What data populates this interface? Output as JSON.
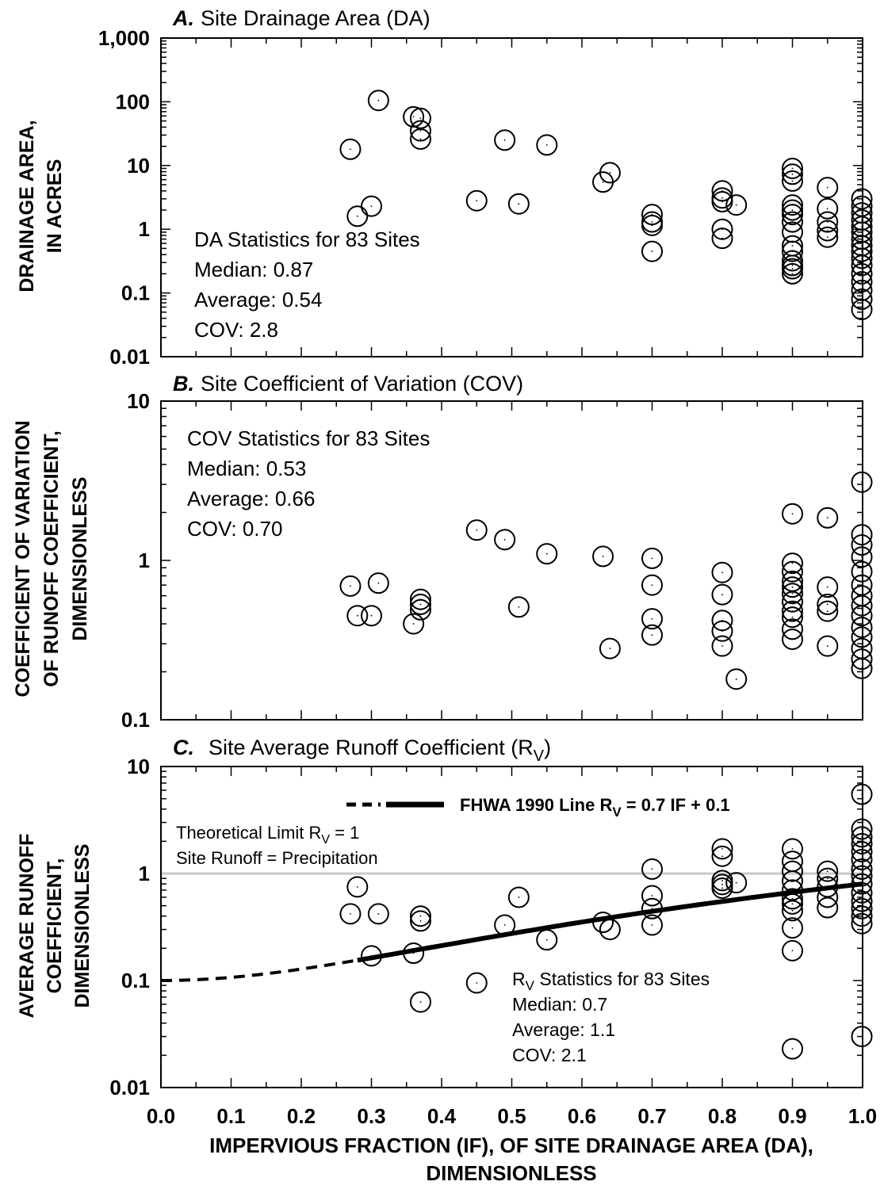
{
  "chart_data": [
    {
      "id": "A",
      "type": "scatter",
      "title_letter": "A.",
      "title": "Site Drainage Area (DA)",
      "ylabel_lines": [
        "DRAINAGE AREA,",
        "IN ACRES"
      ],
      "yscale": "log",
      "ylim": [
        0.01,
        1000
      ],
      "yticks": [
        {
          "v": 0.01,
          "label": "0.01"
        },
        {
          "v": 0.1,
          "label": "0.1"
        },
        {
          "v": 1,
          "label": "1"
        },
        {
          "v": 10,
          "label": "10"
        },
        {
          "v": 100,
          "label": "100"
        },
        {
          "v": 1000,
          "label": "1,000"
        }
      ],
      "xlim": [
        0,
        1
      ],
      "stats": [
        "DA Statistics for 83 Sites",
        "Median: 0.87",
        "Average: 0.54",
        "COV: 2.8"
      ],
      "points": [
        [
          0.27,
          18
        ],
        [
          0.28,
          1.6
        ],
        [
          0.3,
          2.3
        ],
        [
          0.31,
          105
        ],
        [
          0.36,
          58
        ],
        [
          0.37,
          55
        ],
        [
          0.37,
          35
        ],
        [
          0.37,
          26
        ],
        [
          0.45,
          2.8
        ],
        [
          0.49,
          25
        ],
        [
          0.51,
          2.5
        ],
        [
          0.55,
          21
        ],
        [
          0.63,
          5.5
        ],
        [
          0.64,
          7.7
        ],
        [
          0.7,
          1.7
        ],
        [
          0.7,
          1.3
        ],
        [
          0.7,
          1.15
        ],
        [
          0.7,
          0.45
        ],
        [
          0.8,
          4.0
        ],
        [
          0.8,
          3.1
        ],
        [
          0.8,
          2.7
        ],
        [
          0.8,
          1.0
        ],
        [
          0.8,
          0.72
        ],
        [
          0.82,
          2.4
        ],
        [
          0.9,
          9.0
        ],
        [
          0.9,
          7.3
        ],
        [
          0.9,
          5.7
        ],
        [
          0.9,
          2.4
        ],
        [
          0.9,
          2.0
        ],
        [
          0.9,
          1.7
        ],
        [
          0.9,
          1.3
        ],
        [
          0.9,
          0.9
        ],
        [
          0.9,
          0.55
        ],
        [
          0.9,
          0.45
        ],
        [
          0.9,
          0.32
        ],
        [
          0.9,
          0.27
        ],
        [
          0.9,
          0.24
        ],
        [
          0.9,
          0.2
        ],
        [
          0.95,
          4.5
        ],
        [
          0.95,
          2.1
        ],
        [
          0.95,
          1.3
        ],
        [
          0.95,
          0.95
        ],
        [
          0.95,
          0.75
        ],
        [
          1.0,
          3.0
        ],
        [
          1.0,
          2.3
        ],
        [
          1.0,
          1.8
        ],
        [
          1.0,
          1.4
        ],
        [
          1.0,
          1.1
        ],
        [
          1.0,
          0.9
        ],
        [
          1.0,
          0.7
        ],
        [
          1.0,
          0.55
        ],
        [
          1.0,
          0.45
        ],
        [
          1.0,
          0.35
        ],
        [
          1.0,
          0.27
        ],
        [
          1.0,
          0.2
        ],
        [
          1.0,
          0.15
        ],
        [
          1.0,
          0.11
        ],
        [
          1.0,
          0.08
        ],
        [
          1.0,
          0.055
        ]
      ]
    },
    {
      "id": "B",
      "type": "scatter",
      "title_letter": "B.",
      "title": "Site Coefficient of Variation (COV)",
      "ylabel_lines": [
        "COEFFICIENT OF VARIATION",
        "OF RUNOFF COEFFICIENT,",
        "DIMENSIONLESS"
      ],
      "yscale": "log",
      "ylim": [
        0.1,
        10
      ],
      "yticks": [
        {
          "v": 0.1,
          "label": "0.1"
        },
        {
          "v": 1,
          "label": "1"
        },
        {
          "v": 10,
          "label": "10"
        }
      ],
      "xlim": [
        0,
        1
      ],
      "stats": [
        "COV Statistics for 83 Sites",
        "Median: 0.53",
        "Average: 0.66",
        "COV: 0.70"
      ],
      "points": [
        [
          0.27,
          0.69
        ],
        [
          0.28,
          0.45
        ],
        [
          0.3,
          0.45
        ],
        [
          0.31,
          0.72
        ],
        [
          0.36,
          0.4
        ],
        [
          0.37,
          0.57
        ],
        [
          0.37,
          0.53
        ],
        [
          0.37,
          0.49
        ],
        [
          0.45,
          1.55
        ],
        [
          0.49,
          1.35
        ],
        [
          0.51,
          0.51
        ],
        [
          0.55,
          1.1
        ],
        [
          0.63,
          1.06
        ],
        [
          0.64,
          0.28
        ],
        [
          0.7,
          1.03
        ],
        [
          0.7,
          0.7
        ],
        [
          0.7,
          0.43
        ],
        [
          0.7,
          0.34
        ],
        [
          0.8,
          0.84
        ],
        [
          0.8,
          0.61
        ],
        [
          0.8,
          0.42
        ],
        [
          0.8,
          0.36
        ],
        [
          0.8,
          0.29
        ],
        [
          0.82,
          0.18
        ],
        [
          0.9,
          1.96
        ],
        [
          0.9,
          0.96
        ],
        [
          0.9,
          0.85
        ],
        [
          0.9,
          0.74
        ],
        [
          0.9,
          0.68
        ],
        [
          0.9,
          0.62
        ],
        [
          0.9,
          0.55
        ],
        [
          0.9,
          0.48
        ],
        [
          0.9,
          0.44
        ],
        [
          0.9,
          0.37
        ],
        [
          0.9,
          0.32
        ],
        [
          0.95,
          1.85
        ],
        [
          0.95,
          0.68
        ],
        [
          0.95,
          0.53
        ],
        [
          0.95,
          0.48
        ],
        [
          0.95,
          0.29
        ],
        [
          1.0,
          3.1
        ],
        [
          1.0,
          1.45
        ],
        [
          1.0,
          1.25
        ],
        [
          1.0,
          1.05
        ],
        [
          1.0,
          0.85
        ],
        [
          1.0,
          0.7
        ],
        [
          1.0,
          0.6
        ],
        [
          1.0,
          0.52
        ],
        [
          1.0,
          0.45
        ],
        [
          1.0,
          0.38
        ],
        [
          1.0,
          0.33
        ],
        [
          1.0,
          0.28
        ],
        [
          1.0,
          0.24
        ],
        [
          1.0,
          0.21
        ]
      ]
    },
    {
      "id": "C",
      "type": "scatter",
      "title_letter": "C.",
      "title": "Site Average Runoff Coefficient (R",
      "title_sub": "V",
      "title_end": ")",
      "ylabel_lines": [
        "AVERAGE RUNOFF",
        "COEFFICIENT,",
        "DIMENSIONLESS"
      ],
      "yscale": "log",
      "ylim": [
        0.01,
        10
      ],
      "yticks": [
        {
          "v": 0.01,
          "label": "0.01"
        },
        {
          "v": 0.1,
          "label": "0.1"
        },
        {
          "v": 1,
          "label": "1"
        },
        {
          "v": 10,
          "label": "10"
        }
      ],
      "xlim": [
        0,
        1
      ],
      "xticks": [
        {
          "v": 0.0,
          "label": "0.0"
        },
        {
          "v": 0.1,
          "label": "0.1"
        },
        {
          "v": 0.2,
          "label": "0.2"
        },
        {
          "v": 0.3,
          "label": "0.3"
        },
        {
          "v": 0.4,
          "label": "0.4"
        },
        {
          "v": 0.5,
          "label": "0.5"
        },
        {
          "v": 0.6,
          "label": "0.6"
        },
        {
          "v": 0.7,
          "label": "0.7"
        },
        {
          "v": 0.8,
          "label": "0.8"
        },
        {
          "v": 0.9,
          "label": "0.9"
        },
        {
          "v": 1.0,
          "label": "1.0"
        }
      ],
      "xlabel_lines": [
        "IMPERVIOUS FRACTION (IF), OF SITE DRAINAGE AREA (DA),",
        "DIMENSIONLESS"
      ],
      "legend": {
        "text": "FHWA 1990 Line R",
        "sub": "V",
        "end": " = 0.7 IF + 0.1"
      },
      "limit_line": {
        "y": 1,
        "color": "#c8c8c8"
      },
      "limit_note_lines": [
        "Theoretical Limit R",
        "Site Runoff = Precipitation"
      ],
      "limit_note_sub": "V",
      "limit_note_end": " = 1",
      "stats_title": "R",
      "stats_title_sub": "V",
      "stats_title_end": " Statistics for 83 Sites",
      "stats": [
        "Median: 0.7",
        "Average: 1.1",
        "COV: 2.1"
      ],
      "line": {
        "slope": 0.7,
        "intercept": 0.1,
        "dashed_until": 0.28
      },
      "points": [
        [
          0.27,
          0.42
        ],
        [
          0.28,
          0.75
        ],
        [
          0.3,
          0.17
        ],
        [
          0.31,
          0.42
        ],
        [
          0.36,
          0.18
        ],
        [
          0.37,
          0.4
        ],
        [
          0.37,
          0.36
        ],
        [
          0.37,
          0.063
        ],
        [
          0.45,
          0.095
        ],
        [
          0.49,
          0.33
        ],
        [
          0.51,
          0.6
        ],
        [
          0.55,
          0.24
        ],
        [
          0.63,
          0.35
        ],
        [
          0.64,
          0.3
        ],
        [
          0.7,
          1.1
        ],
        [
          0.7,
          0.62
        ],
        [
          0.7,
          0.47
        ],
        [
          0.7,
          0.33
        ],
        [
          0.8,
          1.7
        ],
        [
          0.8,
          1.45
        ],
        [
          0.8,
          0.86
        ],
        [
          0.8,
          0.79
        ],
        [
          0.8,
          0.73
        ],
        [
          0.82,
          0.82
        ],
        [
          0.9,
          1.7
        ],
        [
          0.9,
          1.3
        ],
        [
          0.9,
          1.05
        ],
        [
          0.9,
          0.85
        ],
        [
          0.9,
          0.7
        ],
        [
          0.9,
          0.58
        ],
        [
          0.9,
          0.52
        ],
        [
          0.9,
          0.45
        ],
        [
          0.9,
          0.31
        ],
        [
          0.9,
          0.19
        ],
        [
          0.9,
          0.023
        ],
        [
          0.95,
          1.05
        ],
        [
          0.95,
          0.9
        ],
        [
          0.95,
          0.75
        ],
        [
          0.95,
          0.6
        ],
        [
          0.95,
          0.48
        ],
        [
          1.0,
          5.5
        ],
        [
          1.0,
          2.6
        ],
        [
          1.0,
          2.2
        ],
        [
          1.0,
          1.9
        ],
        [
          1.0,
          1.6
        ],
        [
          1.0,
          1.35
        ],
        [
          1.0,
          1.1
        ],
        [
          1.0,
          0.95
        ],
        [
          1.0,
          0.8
        ],
        [
          1.0,
          0.66
        ],
        [
          1.0,
          0.55
        ],
        [
          1.0,
          0.47
        ],
        [
          1.0,
          0.4
        ],
        [
          1.0,
          0.34
        ],
        [
          1.0,
          0.03
        ]
      ]
    }
  ]
}
